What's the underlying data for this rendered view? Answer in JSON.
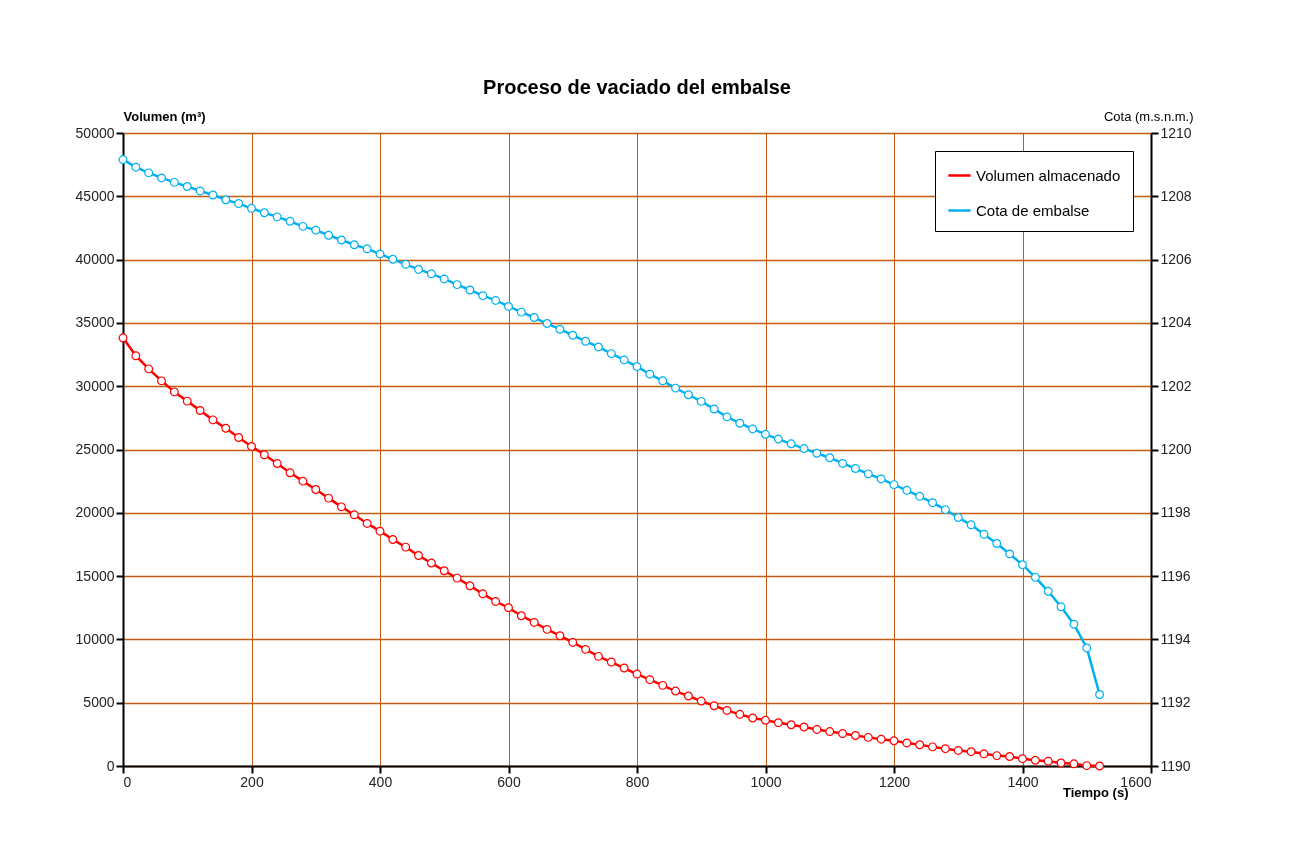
{
  "chart_data": {
    "type": "line",
    "title": "Proceso de vaciado del embalse",
    "xlabel": "Tiempo (s)",
    "ylabel": "Volumen (m³)",
    "y2label": "Cota (m.s.n.m.)",
    "x": [
      0,
      20,
      40,
      60,
      80,
      100,
      120,
      140,
      160,
      180,
      200,
      220,
      240,
      260,
      280,
      300,
      320,
      340,
      360,
      380,
      400,
      420,
      440,
      460,
      480,
      500,
      520,
      540,
      560,
      580,
      600,
      620,
      640,
      660,
      680,
      700,
      720,
      740,
      760,
      780,
      800,
      820,
      840,
      860,
      880,
      900,
      920,
      940,
      960,
      980,
      1000,
      1020,
      1040,
      1060,
      1080,
      1100,
      1120,
      1140,
      1160,
      1180,
      1200,
      1220,
      1240,
      1260,
      1280,
      1300,
      1320,
      1340,
      1360,
      1380,
      1400,
      1420,
      1440,
      1460,
      1480,
      1500,
      1520
    ],
    "series": [
      {
        "name": "Volumen almacenado",
        "color": "#ff0000",
        "values": [
          33820,
          32400,
          31370,
          30420,
          29550,
          28820,
          28080,
          27340,
          26680,
          25950,
          25240,
          24580,
          23890,
          23160,
          22500,
          21840,
          21160,
          20470,
          19840,
          19160,
          18550,
          17890,
          17290,
          16630,
          16030,
          15420,
          14840,
          14240,
          13600,
          13000,
          12500,
          11870,
          11340,
          10790,
          10290,
          9760,
          9210,
          8660,
          8210,
          7740,
          7260,
          6820,
          6370,
          5920,
          5530,
          5130,
          4760,
          4390,
          4080,
          3790,
          3610,
          3420,
          3260,
          3080,
          2890,
          2720,
          2560,
          2410,
          2260,
          2120,
          1990,
          1820,
          1680,
          1510,
          1370,
          1230,
          1130,
          960,
          820,
          750,
          580,
          450,
          380,
          240,
          170,
          30,
          0
        ]
      },
      {
        "name": "Cota de embalse",
        "color": "#00b0f0",
        "axis": "y2",
        "values": [
          1209.16,
          1208.92,
          1208.74,
          1208.58,
          1208.44,
          1208.31,
          1208.17,
          1208.04,
          1207.89,
          1207.77,
          1207.62,
          1207.48,
          1207.35,
          1207.21,
          1207.05,
          1206.93,
          1206.77,
          1206.62,
          1206.47,
          1206.34,
          1206.18,
          1206.01,
          1205.85,
          1205.69,
          1205.55,
          1205.39,
          1205.21,
          1205.04,
          1204.86,
          1204.71,
          1204.52,
          1204.34,
          1204.17,
          1203.98,
          1203.8,
          1203.61,
          1203.42,
          1203.24,
          1203.03,
          1202.83,
          1202.62,
          1202.38,
          1202.17,
          1201.94,
          1201.73,
          1201.52,
          1201.28,
          1201.03,
          1200.83,
          1200.65,
          1200.48,
          1200.33,
          1200.18,
          1200.03,
          1199.88,
          1199.74,
          1199.56,
          1199.4,
          1199.23,
          1199.07,
          1198.89,
          1198.71,
          1198.52,
          1198.32,
          1198.1,
          1197.85,
          1197.62,
          1197.32,
          1197.03,
          1196.7,
          1196.36,
          1195.96,
          1195.52,
          1195.03,
          1194.48,
          1193.73,
          1192.26
        ]
      }
    ],
    "xlim": [
      0,
      1600
    ],
    "xticks": [
      0,
      200,
      400,
      600,
      800,
      1000,
      1200,
      1400,
      1600
    ],
    "ylim": [
      0,
      50000
    ],
    "yticks": [
      0,
      5000,
      10000,
      15000,
      20000,
      25000,
      30000,
      35000,
      40000,
      45000,
      50000
    ],
    "y2lim": [
      1190,
      1210
    ],
    "y2ticks": [
      1190,
      1192,
      1194,
      1196,
      1198,
      1200,
      1202,
      1204,
      1206,
      1208,
      1210
    ],
    "grid": true,
    "legend": "top right",
    "marker": "circle",
    "line_style": "solid"
  }
}
